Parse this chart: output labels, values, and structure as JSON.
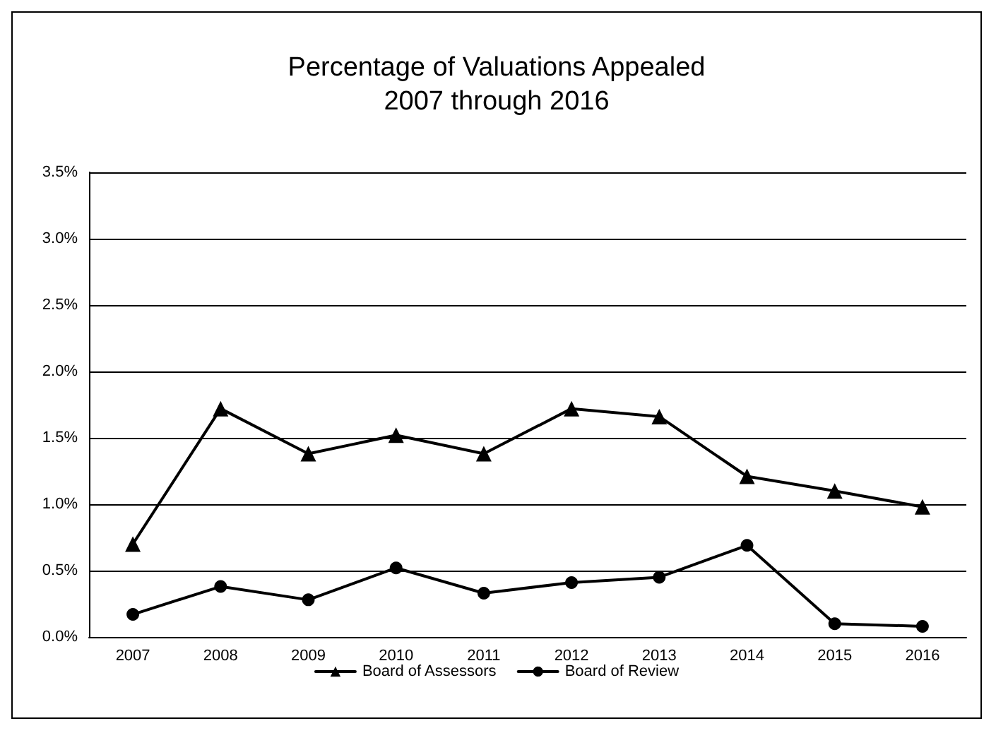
{
  "chart_data": {
    "type": "line",
    "title": "Percentage of Valuations Appealed\n2007 through 2016",
    "categories": [
      "2007",
      "2008",
      "2009",
      "2010",
      "2011",
      "2012",
      "2013",
      "2014",
      "2015",
      "2016"
    ],
    "series": [
      {
        "name": "Board of Assessors",
        "color": "#000000",
        "marker": "triangle",
        "values": [
          0.7,
          1.72,
          1.38,
          1.52,
          1.38,
          1.72,
          1.66,
          1.21,
          1.1,
          0.98
        ]
      },
      {
        "name": "Board of Review",
        "color": "#000000",
        "marker": "circle",
        "values": [
          0.17,
          0.38,
          0.28,
          0.52,
          0.33,
          0.41,
          0.45,
          0.69,
          0.1,
          0.08
        ]
      }
    ],
    "ylim": [
      0,
      3.5
    ],
    "yticks": [
      {
        "value": 0,
        "label": "0.0%"
      },
      {
        "value": 0.5,
        "label": "0.5%"
      },
      {
        "value": 1,
        "label": "1.0%"
      },
      {
        "value": 1.5,
        "label": "1.5%"
      },
      {
        "value": 2,
        "label": "2.0%"
      },
      {
        "value": 2.5,
        "label": "2.5%"
      },
      {
        "value": 3,
        "label": "3.0%"
      },
      {
        "value": 3.5,
        "label": "3.5%"
      }
    ],
    "grid": "y",
    "legend": "bottom",
    "line_style": "solid"
  }
}
